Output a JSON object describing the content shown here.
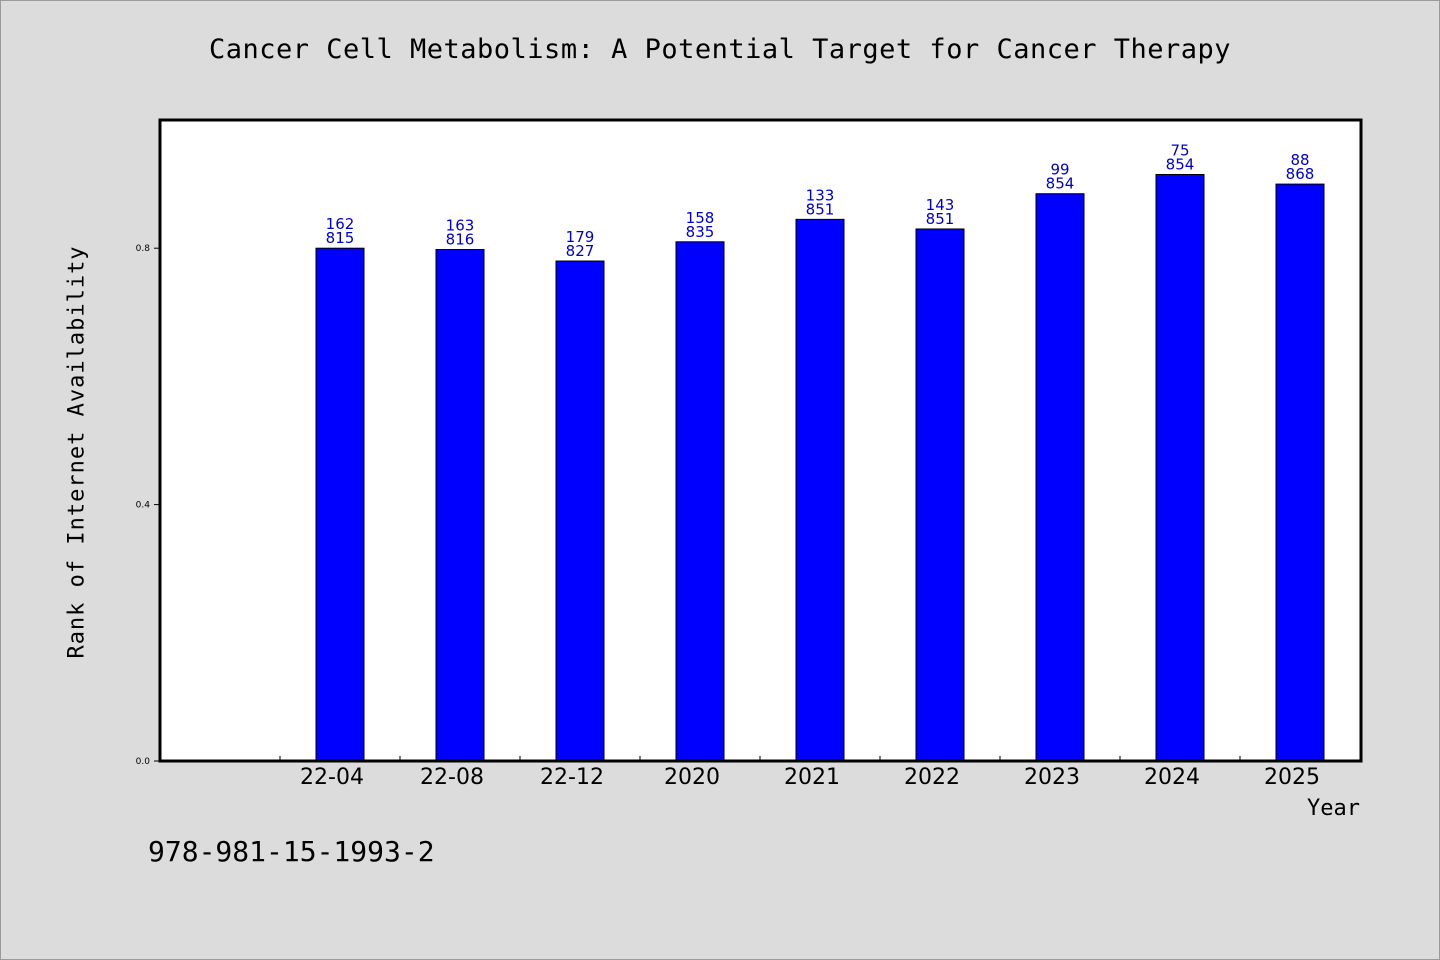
{
  "chart_data": {
    "type": "bar",
    "title": "Cancer Cell Metabolism: A Potential Target for Cancer Therapy",
    "xlabel": "Year",
    "ylabel": "Rank of Internet Availability",
    "categories": [
      "22-04",
      "22-08",
      "22-12",
      "2020",
      "2021",
      "2022",
      "2023",
      "2024",
      "2025"
    ],
    "values": [
      0.8,
      0.798,
      0.78,
      0.81,
      0.845,
      0.83,
      0.885,
      0.915,
      0.9
    ],
    "data_labels_top": [
      "162",
      "163",
      "179",
      "158",
      "133",
      "143",
      "99",
      "75",
      "88"
    ],
    "data_labels_bottom": [
      "815",
      "816",
      "827",
      "835",
      "851",
      "851",
      "854",
      "854",
      "868"
    ],
    "ylim": [
      0,
      1.0
    ],
    "yticks": [
      "0.0",
      "0.4",
      "0.8"
    ],
    "ytick_values": [
      0.0,
      0.4,
      0.8
    ],
    "grid": false,
    "colors": {
      "bar": "#0000ff",
      "label": "#0000cc",
      "background": "#dcdcdc",
      "plot": "#ffffff"
    }
  },
  "footer": {
    "isbn": "978-981-15-1993-2"
  }
}
